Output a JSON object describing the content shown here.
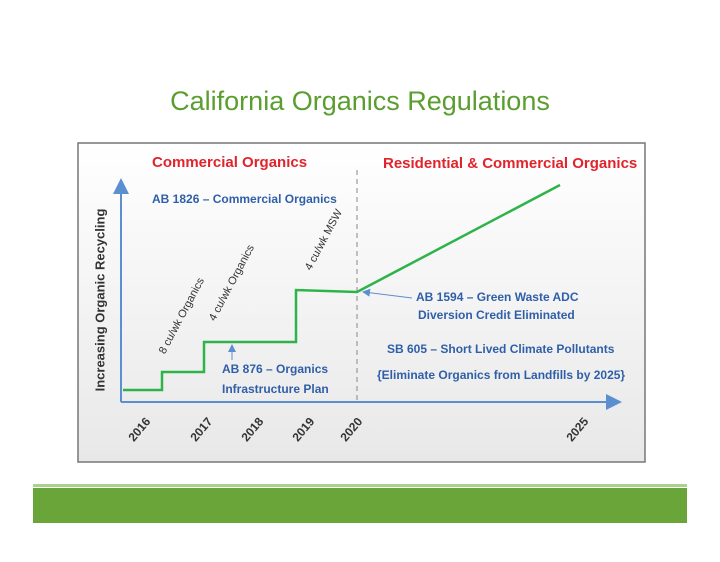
{
  "title": "California Organics Regulations",
  "diagram": {
    "left_heading": "Commercial Organics",
    "right_heading": "Residential & Commercial Organics",
    "y_axis_label": "Increasing Organic Recycling",
    "x_labels": [
      "2016",
      "2017",
      "2018",
      "2019",
      "2020",
      "2025"
    ],
    "step_labels": [
      "8 cu/wk Organics",
      "4 cu/wk Organics",
      "4 cu/wk MSW"
    ],
    "annotations": {
      "ab1826": "AB 1826 – Commercial Organics",
      "ab1594": [
        "AB 1594 – Green Waste ADC",
        "Diversion Credit Eliminated"
      ],
      "sb605": "SB 605 – Short Lived Climate Pollutants",
      "eliminate": "{Eliminate Organics from Landfills by 2025}",
      "ab876": [
        "AB 876 – Organics",
        "Infrastructure Plan"
      ]
    }
  }
}
